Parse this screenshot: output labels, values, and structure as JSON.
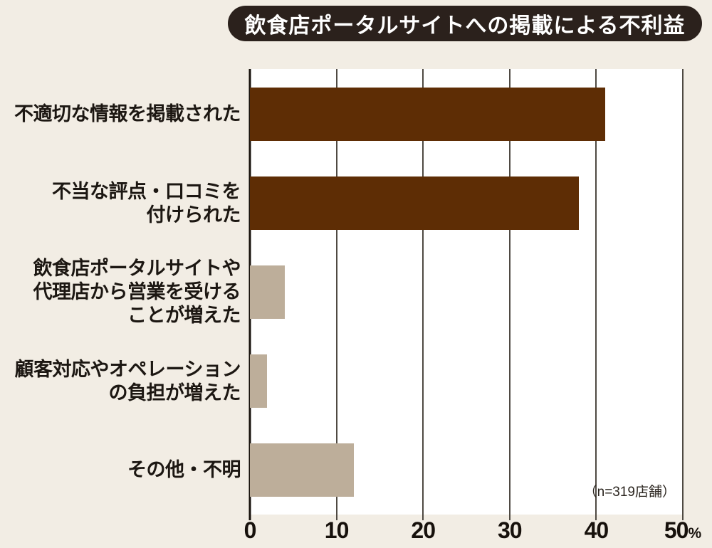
{
  "title": "飲食店ポータルサイトへの掲載による不利益",
  "chart_data": {
    "type": "bar",
    "orientation": "horizontal",
    "title": "飲食店ポータルサイトへの掲載による不利益",
    "categories": [
      "不適切な情報を掲載された",
      "不当な評点・口コミを付けられた",
      "飲食店ポータルサイトや代理店から営業を受けることが増えた",
      "顧客対応やオペレーションの負担が増えた",
      "その他・不明"
    ],
    "category_lines": [
      [
        "不適切な情報を掲載された"
      ],
      [
        "不当な評点・口コミを",
        "付けられた"
      ],
      [
        "飲食店ポータルサイトや",
        "代理店から営業を受ける",
        "ことが増えた"
      ],
      [
        "顧客対応やオペレーション",
        "の負担が増えた"
      ],
      [
        "その他・不明"
      ]
    ],
    "values": [
      41,
      38,
      4,
      2,
      12
    ],
    "unit": "%",
    "xlim": [
      0,
      50
    ],
    "x_ticks": [
      0,
      10,
      20,
      30,
      40,
      50
    ],
    "x_tick_labels": [
      "0",
      "10",
      "20",
      "30",
      "40",
      "50"
    ],
    "x_axis_suffix": "%",
    "note": "（n=319店舗）",
    "grid": true,
    "legend": false,
    "bar_colors": [
      "#5e2d05",
      "#5e2d05",
      "#bdae9a",
      "#bdae9a",
      "#bdae9a"
    ]
  },
  "colors": {
    "page_bg": "#f2ede4",
    "title_bg": "#2b211c",
    "title_text": "#ffffff",
    "plot_bg": "#ffffff",
    "gridline": "#4f4a43",
    "axis_line": "#17110c",
    "bar_dark": "#5e2d05",
    "bar_tan": "#bdae9a",
    "label_text": "#1c1712"
  }
}
